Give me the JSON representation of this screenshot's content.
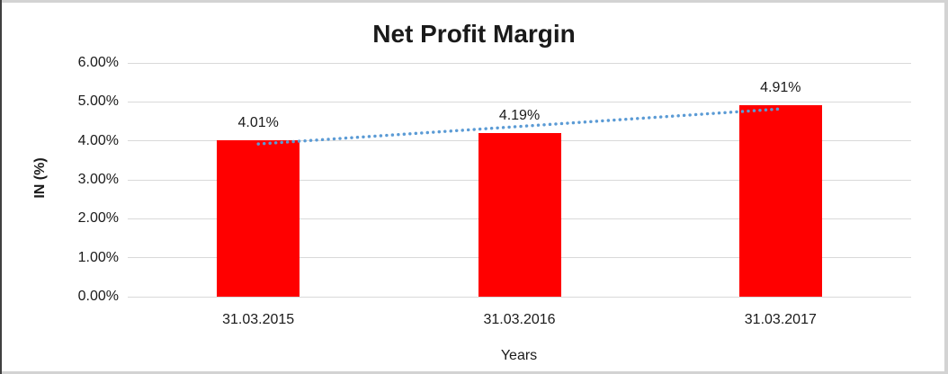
{
  "chart_data": {
    "type": "bar",
    "title": "Net Profit Margin",
    "categories": [
      "31.03.2015",
      "31.03.2016",
      "31.03.2017"
    ],
    "values": [
      4.01,
      4.19,
      4.91
    ],
    "data_labels": [
      "4.01%",
      "4.19%",
      "4.91%"
    ],
    "xlabel": "Years",
    "ylabel": "IN (%)",
    "ylim": [
      0,
      6
    ],
    "yticks": [
      0,
      1,
      2,
      3,
      4,
      5,
      6
    ],
    "ytick_labels": [
      "0.00%",
      "1.00%",
      "2.00%",
      "3.00%",
      "4.00%",
      "5.00%",
      "6.00%"
    ],
    "grid": true,
    "legend": false,
    "trendline": {
      "type": "linear",
      "style": "dotted"
    },
    "colors": {
      "bar": "#ff0000",
      "trendline": "#5b9bd5",
      "gridline": "#d9d9d9",
      "text": "#1a1a1a",
      "frame_border_light": "#d3d3d3",
      "frame_border_dark": "#3f3f3f"
    }
  }
}
